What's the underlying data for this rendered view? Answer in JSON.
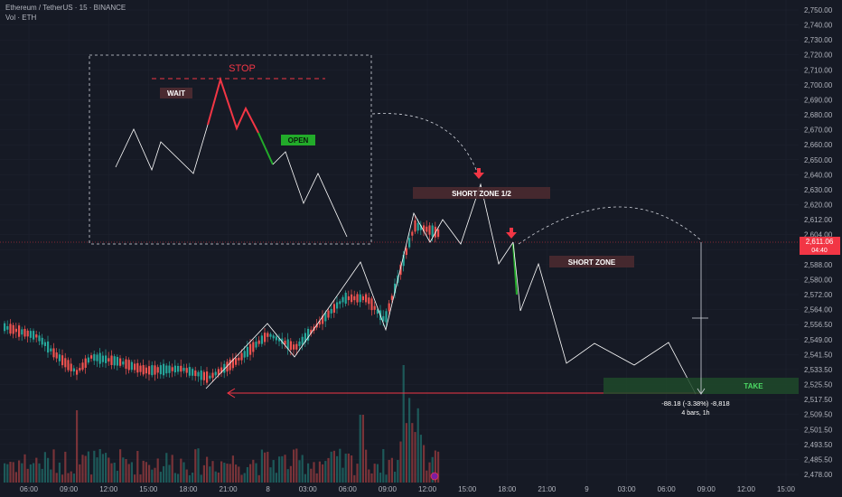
{
  "header": {
    "symbol_line": "Ethereum / TetherUS · 15 · BINANCE",
    "volume_line": "Vol · ETH"
  },
  "price_axis": {
    "ticks": [
      "2,750.00",
      "2,740.00",
      "2,730.00",
      "2,720.00",
      "2,710.00",
      "2,700.00",
      "2,690.00",
      "2,680.00",
      "2,670.00",
      "2,660.00",
      "2,650.00",
      "2,640.00",
      "2,630.00",
      "2,620.00",
      "2,612.00",
      "2,604.00",
      "2,596.00",
      "2,588.00",
      "2,580.00",
      "2,572.00",
      "2,564.00",
      "2,556.50",
      "2,549.00",
      "2,541.50",
      "2,533.50",
      "2,525.50",
      "2,517.50",
      "2,509.50",
      "2,501.50",
      "2,493.50",
      "2,485.50",
      "2,478.00"
    ],
    "current_price": "2,611.06",
    "countdown": "04:40"
  },
  "time_axis": {
    "ticks": [
      "06:00",
      "09:00",
      "12:00",
      "15:00",
      "18:00",
      "21:00",
      "8",
      "03:00",
      "06:00",
      "09:00",
      "12:00",
      "15:00",
      "18:00",
      "21:00",
      "9",
      "03:00",
      "06:00",
      "09:00",
      "12:00",
      "15:00"
    ]
  },
  "annotations": {
    "stop": "STOP",
    "wait": "WAIT",
    "open": "OPEN",
    "short_zone_1": "SHORT ZONE 1/2",
    "short_zone_2": "SHORT ZONE",
    "take": "TAKE",
    "measure_line1": "-88.18 (-3.38%) -8,818",
    "measure_line2": "4 bars, 1h"
  },
  "colors": {
    "background": "#161a25",
    "up_candle": "#26a69a",
    "down_candle": "#ef5350",
    "stop_red": "#f23645",
    "open_green": "#22ab2a",
    "zone_bg": "#4a2a30",
    "take_bg": "#1f4a2a",
    "take_text": "#4cd964",
    "price_badge": "#f23645"
  },
  "chart_data": {
    "type": "candlestick",
    "symbol": "Ethereum / TetherUS",
    "interval": "15",
    "exchange": "BINANCE",
    "ylim": [
      2475,
      2755
    ],
    "current_price": 2611.06,
    "projected_path_prices": [
      2611,
      2572,
      2596,
      2541,
      2549,
      2541,
      2552,
      2520
    ],
    "zigzag_prices": [
      2521,
      2556,
      2541,
      2596,
      2556,
      2622,
      2612,
      2622,
      2613,
      2643,
      2600,
      2612
    ],
    "take_level": 2529,
    "measure": {
      "change": -88.18,
      "percent": -3.38,
      "ticks": -8818,
      "bars": 4,
      "duration": "1h"
    }
  }
}
